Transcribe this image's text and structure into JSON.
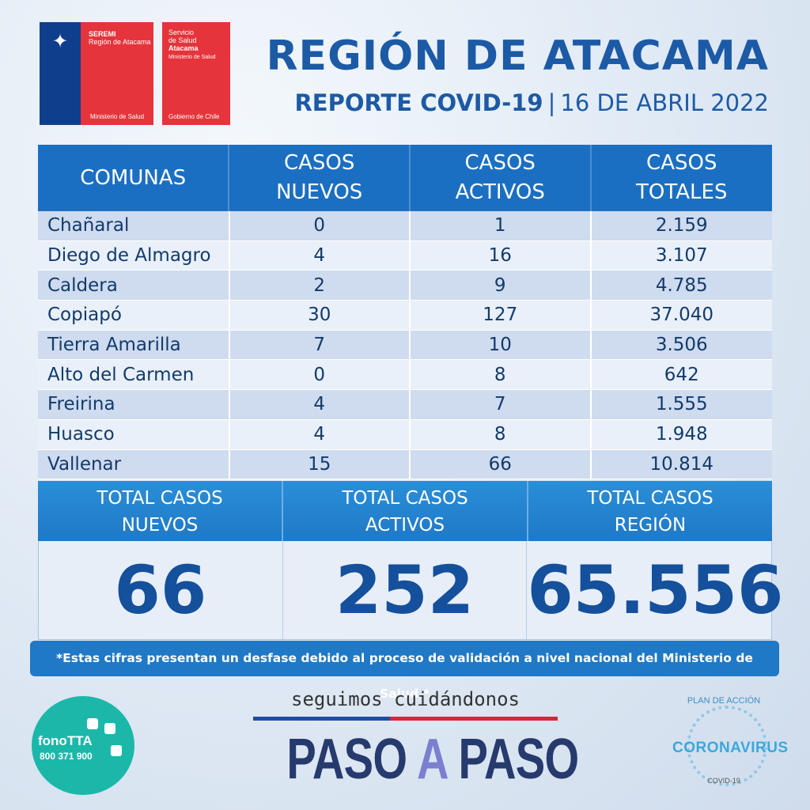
{
  "logos": {
    "seremi": {
      "line1": "SEREMI",
      "line2": "Región de Atacama",
      "bottom": "Ministerio de Salud"
    },
    "servicio": {
      "line1": "Servicio",
      "line2": "de Salud",
      "line3": "Atacama",
      "line4": "Ministerio de Salud",
      "bottom": "Gobierno de Chile"
    }
  },
  "header": {
    "title": "REGIÓN DE ATACAMA",
    "report": "REPORTE COVID-19",
    "separator": "|",
    "date": "16 DE ABRIL 2022"
  },
  "table": {
    "columns": [
      "COMUNAS",
      "CASOS\nNUEVOS",
      "CASOS\nACTIVOS",
      "CASOS\nTOTALES"
    ],
    "rows": [
      [
        "Chañaral",
        "0",
        "1",
        "2.159"
      ],
      [
        "Diego de Almagro",
        "4",
        "16",
        "3.107"
      ],
      [
        "Caldera",
        "2",
        "9",
        "4.785"
      ],
      [
        "Copiapó",
        "30",
        "127",
        "37.040"
      ],
      [
        "Tierra Amarilla",
        "7",
        "10",
        "3.506"
      ],
      [
        "Alto del Carmen",
        "0",
        "8",
        "642"
      ],
      [
        "Freirina",
        "4",
        "7",
        "1.555"
      ],
      [
        "Huasco",
        "4",
        "8",
        "1.948"
      ],
      [
        "Vallenar",
        "15",
        "66",
        "10.814"
      ]
    ]
  },
  "totals": {
    "labels": [
      "TOTAL CASOS\nNUEVOS",
      "TOTAL CASOS\nACTIVOS",
      "TOTAL CASOS\nREGIÓN"
    ],
    "values": [
      "66",
      "252",
      "65.556"
    ]
  },
  "note": "*Estas cifras presentan un desfase debido al proceso de validación a nivel nacional del Ministerio de Salud.*",
  "fono": {
    "name": "fonoTTA",
    "number": "800 371 900"
  },
  "campaign": {
    "tagline": "seguimos cuidándonos",
    "paso1": "PASO ",
    "a": "A",
    "paso2": " PASO"
  },
  "plan": {
    "top": "PLAN DE ACCIÓN",
    "main": "CORONAVIRUS",
    "bottom": "COVID-19"
  },
  "colors": {
    "primary_blue": "#1b6fc2",
    "title_blue": "#1c5aa6",
    "flag_red": "#d8263b",
    "teal": "#1bb8a9"
  }
}
